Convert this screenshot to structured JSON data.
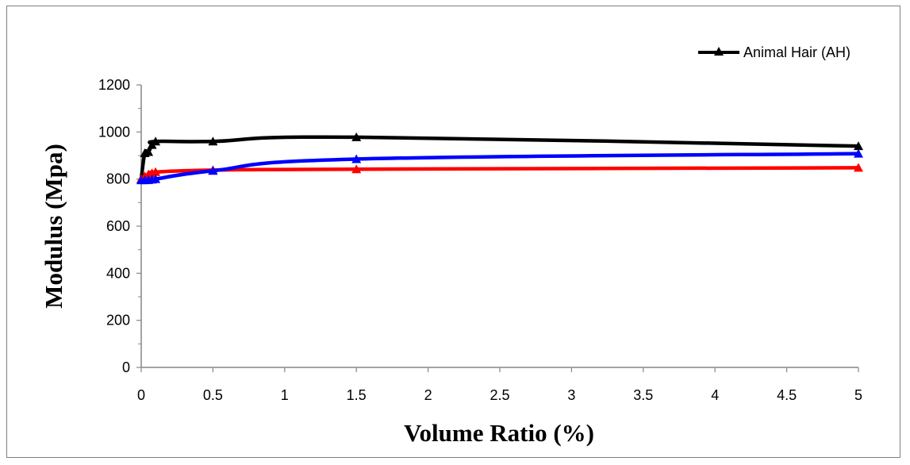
{
  "chart_data": {
    "type": "line",
    "title": "",
    "xlabel": "Volume Ratio (%)",
    "ylabel": "Modulus (Mpa)",
    "xlim": [
      0,
      5
    ],
    "ylim": [
      0,
      1200
    ],
    "x_ticks": [
      "0",
      "0.5",
      "1",
      "1.5",
      "2",
      "2.5",
      "3",
      "3.5",
      "4",
      "4.5",
      "5"
    ],
    "y_ticks": [
      "0",
      "200",
      "400",
      "600",
      "800",
      "1000",
      "1200"
    ],
    "grid": false,
    "legend_position": "top-right",
    "series": [
      {
        "name": "Animal Hair (AH)",
        "color": "#000000",
        "marker": "triangle",
        "x": [
          0,
          0.025,
          0.05,
          0.075,
          0.1,
          0.5,
          1.5,
          5
        ],
        "y": [
          800,
          910,
          915,
          945,
          960,
          960,
          978,
          940
        ]
      },
      {
        "color": "#ff0000",
        "marker": "triangle",
        "x": [
          0,
          0.025,
          0.05,
          0.075,
          0.1,
          0.5,
          1.5,
          5
        ],
        "y": [
          800,
          812,
          820,
          825,
          830,
          838,
          842,
          848
        ]
      },
      {
        "color": "#0000ff",
        "marker": "triangle",
        "x": [
          0,
          0.025,
          0.05,
          0.075,
          0.1,
          0.5,
          1.5,
          5
        ],
        "y": [
          795,
          795,
          796,
          798,
          800,
          835,
          885,
          908
        ]
      }
    ]
  }
}
